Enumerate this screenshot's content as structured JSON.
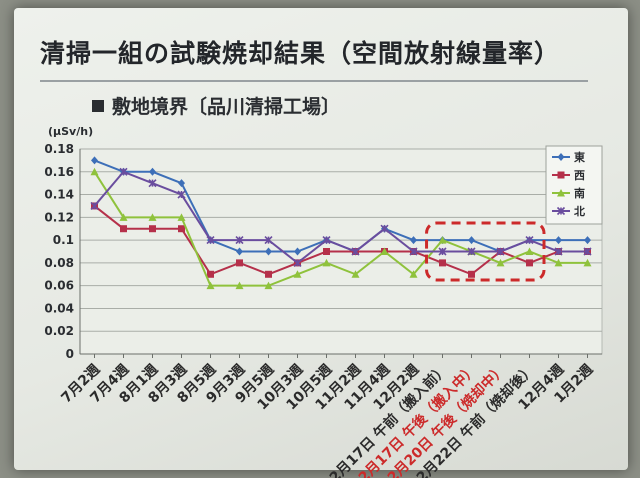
{
  "title": "清掃一組の試験焼却結果（空間放射線量率）",
  "subtitle": "敷地境界〔品川清掃工場〕",
  "chart_data": {
    "type": "line",
    "ylabel": "(μSv/h)",
    "ylim": [
      0,
      0.18
    ],
    "yticks": [
      "0",
      "0.02",
      "0.04",
      "0.06",
      "0.08",
      "0.1",
      "0.12",
      "0.14",
      "0.16",
      "0.18"
    ],
    "grid": true,
    "legend_position": "top-right",
    "categories": [
      {
        "label": "7月2週",
        "color": "#2b2b2b"
      },
      {
        "label": "7月4週",
        "color": "#2b2b2b"
      },
      {
        "label": "8月1週",
        "color": "#2b2b2b"
      },
      {
        "label": "8月3週",
        "color": "#2b2b2b"
      },
      {
        "label": "8月5週",
        "color": "#2b2b2b"
      },
      {
        "label": "9月3週",
        "color": "#2b2b2b"
      },
      {
        "label": "9月5週",
        "color": "#2b2b2b"
      },
      {
        "label": "10月3週",
        "color": "#2b2b2b"
      },
      {
        "label": "10月5週",
        "color": "#2b2b2b"
      },
      {
        "label": "11月2週",
        "color": "#2b2b2b"
      },
      {
        "label": "11月4週",
        "color": "#2b2b2b"
      },
      {
        "label": "12月2週",
        "color": "#2b2b2b"
      },
      {
        "label": "12月17日 午前（搬入前）",
        "color": "#2b2b2b"
      },
      {
        "label": "12月17日 午後（搬入中）",
        "color": "#cc2a2a"
      },
      {
        "label": "12月20日 午後（焼却中）",
        "color": "#cc2a2a"
      },
      {
        "label": "12月22日 午前（焼却後）",
        "color": "#2b2b2b"
      },
      {
        "label": "12月4週",
        "color": "#2b2b2b"
      },
      {
        "label": "1月2週",
        "color": "#2b2b2b"
      }
    ],
    "series": [
      {
        "name": "東",
        "color": "#3d6fb8",
        "marker": "diamond",
        "values": [
          0.17,
          0.16,
          0.16,
          0.15,
          0.1,
          0.09,
          0.09,
          0.09,
          0.1,
          0.09,
          0.11,
          0.1,
          0.1,
          0.1,
          0.09,
          0.1,
          0.1,
          0.1
        ]
      },
      {
        "name": "西",
        "color": "#b5304a",
        "marker": "square",
        "values": [
          0.13,
          0.11,
          0.11,
          0.11,
          0.07,
          0.08,
          0.07,
          0.08,
          0.09,
          0.09,
          0.09,
          0.09,
          0.08,
          0.07,
          0.09,
          0.08,
          0.09,
          0.09
        ]
      },
      {
        "name": "南",
        "color": "#8fc23c",
        "marker": "triangle",
        "values": [
          0.16,
          0.12,
          0.12,
          0.12,
          0.06,
          0.06,
          0.06,
          0.07,
          0.08,
          0.07,
          0.09,
          0.07,
          0.1,
          0.09,
          0.08,
          0.09,
          0.08,
          0.08
        ]
      },
      {
        "name": "北",
        "color": "#6a4d9e",
        "marker": "x",
        "values": [
          0.13,
          0.16,
          0.15,
          0.14,
          0.1,
          0.1,
          0.1,
          0.08,
          0.1,
          0.09,
          0.11,
          0.09,
          0.09,
          0.09,
          0.09,
          0.1,
          0.09,
          0.09
        ]
      }
    ],
    "annotations": [
      {
        "type": "dashed-box",
        "color": "#cc2a2a",
        "from_category": 12,
        "to_category": 15,
        "y_range": [
          0.065,
          0.115
        ]
      }
    ]
  }
}
